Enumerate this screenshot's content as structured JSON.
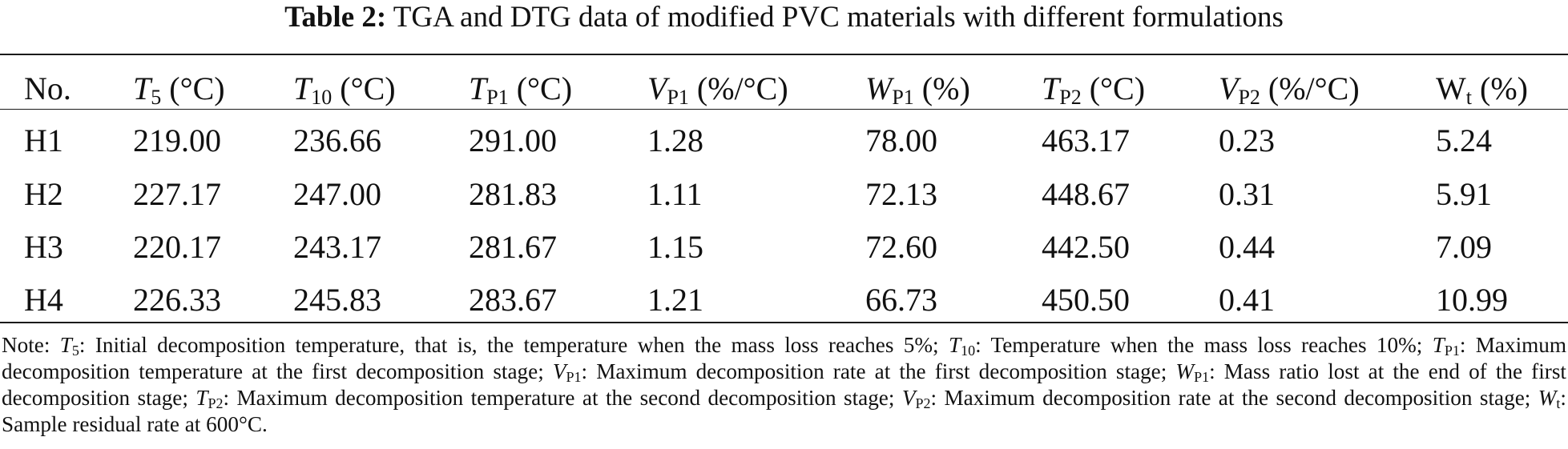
{
  "caption": {
    "label": "Table 2:",
    "text": "TGA and DTG data of modified PVC materials with different formulations"
  },
  "table": {
    "headers": [
      {
        "sym": "",
        "sub": "",
        "unit": "No."
      },
      {
        "sym": "T",
        "sub": "5",
        "unit": "(°C)"
      },
      {
        "sym": "T",
        "sub": "10",
        "unit": "(°C)"
      },
      {
        "sym": "T",
        "sub": "P1",
        "unit": "(°C)"
      },
      {
        "sym": "V",
        "sub": "P1",
        "unit": "(%/°C)"
      },
      {
        "sym": "W",
        "sub": "P1",
        "unit": "(%)"
      },
      {
        "sym": "T",
        "sub": "P2",
        "unit": "(°C)"
      },
      {
        "sym": "V",
        "sub": "P2",
        "unit": "(%/°C)"
      },
      {
        "sym": "W",
        "sub": "t",
        "unit": "(%)"
      }
    ],
    "rows": [
      [
        "H1",
        "219.00",
        "236.66",
        "291.00",
        "1.28",
        "78.00",
        "463.17",
        "0.23",
        "5.24"
      ],
      [
        "H2",
        "227.17",
        "247.00",
        "281.83",
        "1.11",
        "72.13",
        "448.67",
        "0.31",
        "5.91"
      ],
      [
        "H3",
        "220.17",
        "243.17",
        "281.67",
        "1.15",
        "72.60",
        "442.50",
        "0.44",
        "7.09"
      ],
      [
        "H4",
        "226.33",
        "245.83",
        "283.67",
        "1.21",
        "66.73",
        "450.50",
        "0.41",
        "10.99"
      ]
    ]
  },
  "note": {
    "prefix": "Note:",
    "items": [
      {
        "sym": "T",
        "sub": "5",
        "text": ": Initial decomposition temperature, that is, the temperature when the mass loss reaches 5%;"
      },
      {
        "sym": "T",
        "sub": "10",
        "text": ": Temperature when the mass loss reaches 10%;"
      },
      {
        "sym": "T",
        "sub": "P1",
        "text": ": Maximum decomposition temperature at the first decomposition stage;"
      },
      {
        "sym": "V",
        "sub": "P1",
        "text": ": Maximum decomposition rate at the first decomposition stage;"
      },
      {
        "sym": "W",
        "sub": "P1",
        "text": ": Mass ratio lost at the end of the first decomposition stage;"
      },
      {
        "sym": "T",
        "sub": "P2",
        "text": ": Maximum decomposition temperature at the second decomposition stage;"
      },
      {
        "sym": "V",
        "sub": "P2",
        "text": ": Maximum decomposition rate at the second decomposition stage;"
      },
      {
        "sym": "W",
        "sub": "t",
        "text": ": Sample residual rate at 600°C."
      }
    ]
  }
}
